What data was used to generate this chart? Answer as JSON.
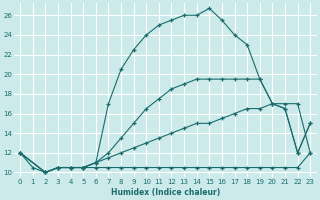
{
  "xlabel": "Humidex (Indice chaleur)",
  "background_color": "#cceaea",
  "grid_color": "#ffffff",
  "line_color": "#1a6b6b",
  "xlim": [
    -0.5,
    23.5
  ],
  "ylim": [
    9.5,
    27.2
  ],
  "xticks": [
    0,
    1,
    2,
    3,
    4,
    5,
    6,
    7,
    8,
    9,
    10,
    11,
    12,
    13,
    14,
    15,
    16,
    17,
    18,
    19,
    20,
    21,
    22,
    23
  ],
  "yticks": [
    10,
    12,
    14,
    16,
    18,
    20,
    22,
    24,
    26
  ],
  "line1_x": [
    0,
    1,
    2,
    3,
    4,
    5,
    6,
    7,
    8,
    9,
    10,
    11,
    12,
    13,
    14,
    15,
    16,
    17,
    18,
    19,
    20,
    21,
    22,
    23
  ],
  "line1_y": [
    12,
    10.5,
    10,
    10.5,
    10.5,
    10.5,
    10.5,
    10.5,
    10.5,
    10.5,
    10.5,
    10.5,
    10.5,
    10.5,
    10.5,
    10.5,
    10.5,
    10.5,
    10.5,
    10.5,
    10.5,
    10.5,
    10.5,
    12
  ],
  "line2_x": [
    0,
    2,
    3,
    4,
    5,
    6,
    7,
    8,
    9,
    10,
    11,
    12,
    13,
    14,
    15,
    16,
    17,
    18,
    19,
    20,
    21,
    22,
    23
  ],
  "line2_y": [
    12,
    10,
    10.5,
    10.5,
    10.5,
    11,
    11.5,
    12,
    12.5,
    13,
    13.5,
    14,
    14.5,
    15,
    15,
    15.5,
    16,
    16.5,
    16.5,
    17,
    17,
    17,
    12
  ],
  "line3_x": [
    0,
    2,
    3,
    4,
    5,
    6,
    7,
    8,
    9,
    10,
    11,
    12,
    13,
    14,
    15,
    16,
    17,
    18,
    19,
    20,
    21,
    22,
    23
  ],
  "line3_y": [
    12,
    10,
    10.5,
    10.5,
    10.5,
    11,
    12,
    13.5,
    15,
    16.5,
    17.5,
    18.5,
    19,
    19.5,
    19.5,
    19.5,
    19.5,
    19.5,
    19.5,
    17,
    16.5,
    12,
    15
  ],
  "line4_x": [
    0,
    2,
    3,
    4,
    5,
    6,
    7,
    8,
    9,
    10,
    11,
    12,
    13,
    14,
    15,
    16,
    17,
    18,
    19,
    20,
    21,
    22,
    23
  ],
  "line4_y": [
    12,
    10,
    10.5,
    10.5,
    10.5,
    11,
    17,
    20.5,
    22.5,
    24,
    25,
    25.5,
    26,
    26,
    26.7,
    25.5,
    24,
    23,
    19.5,
    17,
    16.5,
    12,
    15
  ]
}
